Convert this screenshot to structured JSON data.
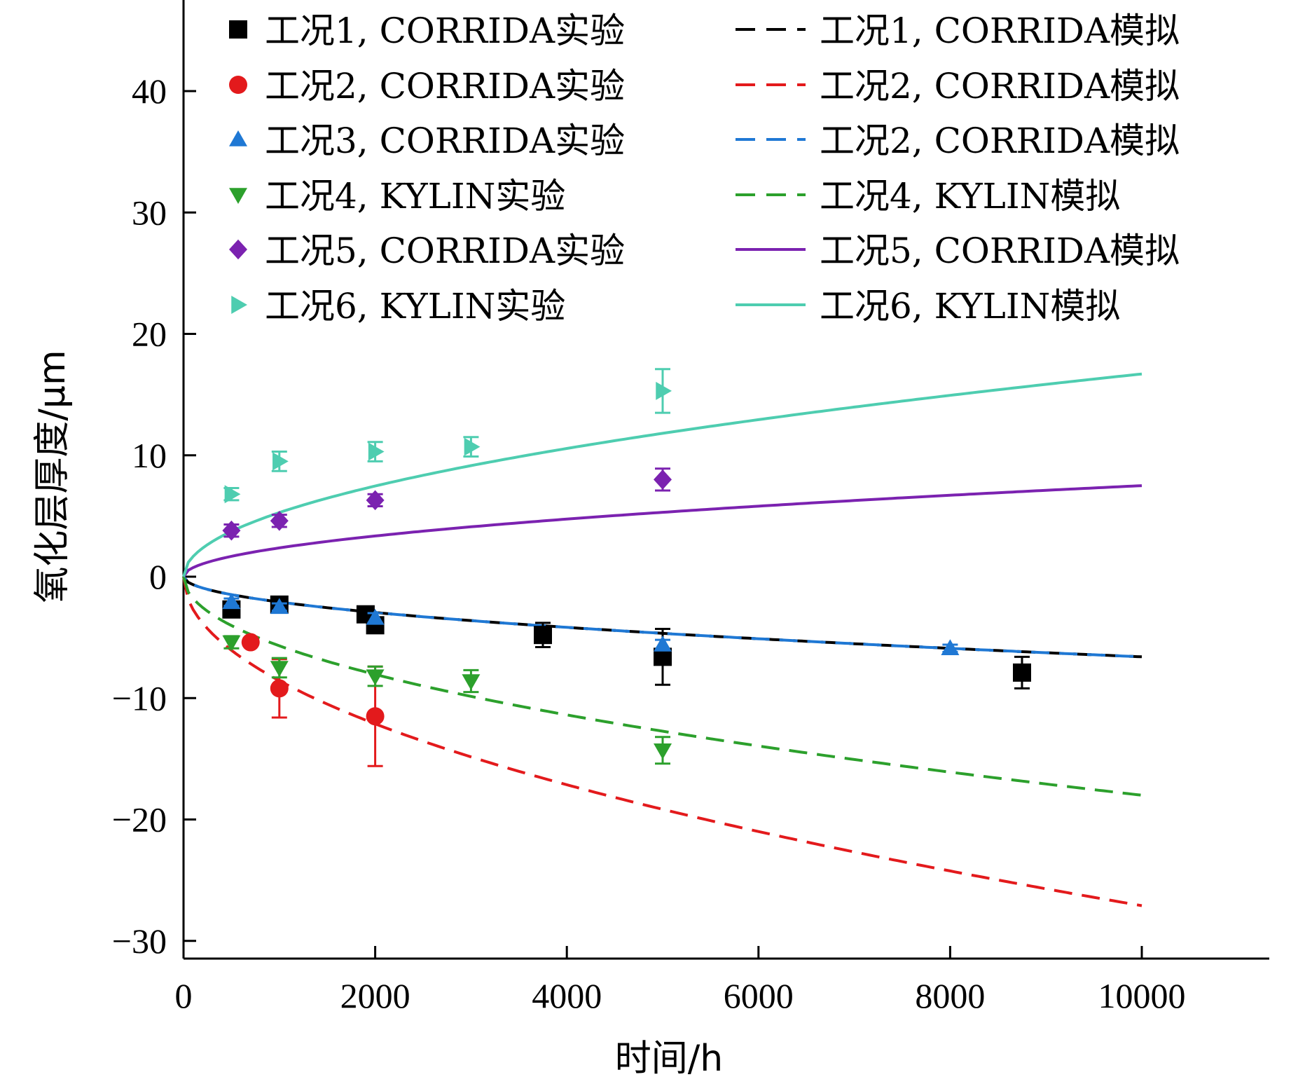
{
  "chart_data": {
    "type": "scatter",
    "xlabel": "时间/h",
    "ylabel": "氧化层厚度/μm",
    "xlim": [
      0,
      11300
    ],
    "ylim": [
      -32.5,
      48
    ],
    "xticks": [
      0,
      2000,
      4000,
      6000,
      8000,
      10000
    ],
    "yticks": [
      -30,
      -20,
      -10,
      0,
      10,
      20,
      30,
      40
    ],
    "xtick_labels": [
      "0",
      "2000",
      "4000",
      "6000",
      "8000",
      "10000"
    ],
    "ytick_labels": [
      "−30",
      "−20",
      "−10",
      "0",
      "10",
      "20",
      "30",
      "40"
    ],
    "legend_position": "top",
    "experiment_series": [
      {
        "name": "工况1, CORRIDA实验",
        "color": "#000000",
        "marker": "square",
        "points": [
          [
            500,
            -2.7,
            0.3
          ],
          [
            1000,
            -2.3,
            0.3
          ],
          [
            1900,
            -3.1,
            0.3
          ],
          [
            2000,
            -4.0,
            0.4
          ],
          [
            3750,
            -4.8,
            1.0
          ],
          [
            5000,
            -6.6,
            2.3
          ],
          [
            8750,
            -7.9,
            1.3
          ]
        ]
      },
      {
        "name": "工况2, CORRIDA实验",
        "color": "#e31a1c",
        "marker": "circle",
        "points": [
          [
            700,
            -5.4,
            0.3
          ],
          [
            1000,
            -9.2,
            2.4
          ],
          [
            2000,
            -11.5,
            4.1
          ]
        ]
      },
      {
        "name": "工况3, CORRIDA实验",
        "color": "#1f78d4",
        "marker": "triangle-up",
        "points": [
          [
            500,
            -2.1,
            0.3
          ],
          [
            1000,
            -2.5,
            0.3
          ],
          [
            2000,
            -3.4,
            0.4
          ],
          [
            5000,
            -5.6,
            0.4
          ],
          [
            8000,
            -5.9,
            0.3
          ]
        ]
      },
      {
        "name": "工况4, KYLIN实验",
        "color": "#2ca02c",
        "marker": "triangle-down",
        "points": [
          [
            500,
            -5.4,
            0.5
          ],
          [
            1000,
            -7.5,
            0.8
          ],
          [
            2000,
            -8.2,
            0.8
          ],
          [
            3000,
            -8.6,
            0.9
          ],
          [
            5000,
            -14.3,
            1.1
          ]
        ]
      },
      {
        "name": "工况5, CORRIDA实验",
        "color": "#7b22b0",
        "marker": "diamond",
        "points": [
          [
            500,
            3.8,
            0.5
          ],
          [
            1000,
            4.6,
            0.5
          ],
          [
            2000,
            6.3,
            0.5
          ],
          [
            5000,
            8.0,
            0.9
          ]
        ]
      },
      {
        "name": "工况6, KYLIN实验",
        "color": "#4ecdb0",
        "marker": "triangle-right",
        "points": [
          [
            500,
            6.8,
            0.5
          ],
          [
            1000,
            9.5,
            0.8
          ],
          [
            2000,
            10.3,
            0.8
          ],
          [
            3000,
            10.7,
            0.8
          ],
          [
            5000,
            15.3,
            1.8
          ]
        ]
      }
    ],
    "model_series": [
      {
        "name": "工况1, CORRIDA模拟",
        "color": "#000000",
        "dash": "dashed",
        "coef": -0.066,
        "exponent": 0.5
      },
      {
        "name": "工况2, CORRIDA模拟",
        "color": "#e31a1c",
        "dash": "dashed",
        "coef": -0.271,
        "exponent": 0.5
      },
      {
        "name": "工况2, CORRIDA模拟",
        "color": "#1f78d4",
        "dash": "dashed",
        "coef": -0.066,
        "exponent": 0.5
      },
      {
        "name": "工况4, KYLIN模拟",
        "color": "#2ca02c",
        "dash": "dashed",
        "coef": -0.18,
        "exponent": 0.5
      },
      {
        "name": "工况5, CORRIDA模拟",
        "color": "#7b22b0",
        "dash": "solid",
        "coef": 0.075,
        "exponent": 0.5
      },
      {
        "name": "工况6, KYLIN模拟",
        "color": "#4ecdb0",
        "dash": "solid",
        "coef": 0.167,
        "exponent": 0.5
      }
    ],
    "model_xmax": 10000
  }
}
